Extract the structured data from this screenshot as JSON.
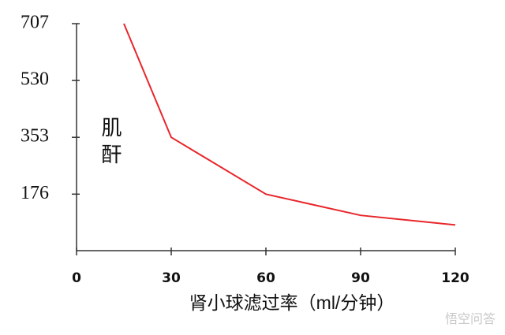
{
  "chart_data": {
    "type": "line",
    "y_label": "肌酐",
    "x_label": "肾小球滤过率（ml/分钟）",
    "x": [
      15,
      30,
      60,
      90,
      120
    ],
    "series": [
      {
        "name": "肌酐",
        "color": "#e8262b",
        "values": [
          707,
          353,
          176,
          110,
          80
        ]
      }
    ],
    "xlim": [
      0,
      120
    ],
    "xticks": [
      0,
      30,
      60,
      90,
      120
    ],
    "ylim": [
      0,
      707
    ],
    "yticks": [
      176,
      353,
      530,
      707
    ],
    "watermark": "悟空问答"
  }
}
